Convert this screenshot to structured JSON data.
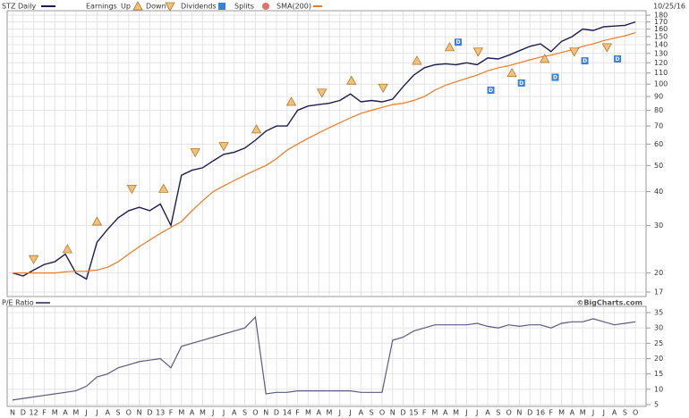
{
  "chart_data": [
    {
      "type": "line",
      "log": true,
      "grid": true,
      "date": "10/25/16",
      "series": [
        {
          "name": "STZ Daily",
          "color": "#1c1c50",
          "values": [
            20,
            19.5,
            20.5,
            21.5,
            22,
            23.5,
            20,
            19,
            26,
            29,
            32,
            34,
            35,
            34,
            36,
            30,
            46,
            48,
            49,
            52,
            55,
            56,
            58,
            62,
            67,
            70,
            70,
            80,
            83,
            84,
            85,
            87,
            92,
            86,
            87,
            86,
            88,
            98,
            108,
            115,
            118,
            119,
            118,
            120,
            118,
            125,
            124,
            128,
            133,
            138,
            141,
            132,
            144,
            150,
            160,
            158,
            163,
            164,
            165,
            170
          ]
        },
        {
          "name": "SMA(200)",
          "color": "#f07820",
          "values": [
            20,
            20,
            20,
            20,
            20,
            20.2,
            20.3,
            20.3,
            20.5,
            21,
            22,
            23.5,
            25,
            26.5,
            28,
            29.5,
            31,
            34,
            37,
            40,
            42,
            44,
            46,
            48,
            50,
            53,
            57,
            60,
            63,
            66,
            69,
            72,
            75,
            78,
            80,
            82,
            84,
            85,
            87,
            90,
            95,
            99,
            102,
            105,
            108,
            112,
            115,
            117,
            120,
            123,
            126,
            128,
            131,
            134,
            138,
            141,
            145,
            148,
            151,
            155
          ]
        }
      ],
      "earnings": {
        "name": "Earnings",
        "up": {
          "name": "Up",
          "color": "#f3c27a",
          "x": [
            5.2,
            8,
            14.3,
            23.1,
            26.4,
            32.1,
            38.3,
            41.4,
            47.3,
            50.4
          ],
          "values": [
            24.5,
            31,
            41,
            68,
            86,
            103,
            122,
            137,
            110,
            124
          ]
        },
        "down": {
          "name": "Down",
          "color": "#f3c27a",
          "x": [
            2,
            11.3,
            17.3,
            20,
            29.3,
            35.1,
            44.1,
            53.2,
            56.3
          ],
          "values": [
            22.5,
            41,
            56,
            59,
            93,
            97,
            132,
            132,
            137
          ]
        }
      },
      "dividends": {
        "name": "Dividends",
        "symbol": "D",
        "color": "#3a7fd8",
        "x": [
          42.2,
          45.3,
          48.2,
          51.4,
          54.2,
          57.3
        ],
        "values": [
          143,
          95,
          101,
          106,
          122,
          124
        ]
      },
      "splits": {
        "name": "Splits",
        "color": "#e07070"
      },
      "ylim": [
        17,
        180
      ],
      "yticks": [
        17,
        20,
        30,
        40,
        50,
        60,
        70,
        80,
        90,
        100,
        110,
        120,
        130,
        140,
        150,
        160,
        170,
        180
      ]
    },
    {
      "type": "line",
      "grid": true,
      "source": "©BigCharts.com",
      "categories": [
        "N",
        "D",
        "12",
        "F",
        "M",
        "A",
        "M",
        "J",
        "J",
        "A",
        "S",
        "O",
        "N",
        "D",
        "13",
        "F",
        "M",
        "A",
        "M",
        "J",
        "J",
        "A",
        "S",
        "O",
        "N",
        "D",
        "14",
        "F",
        "M",
        "A",
        "M",
        "J",
        "J",
        "A",
        "S",
        "O",
        "N",
        "D",
        "15",
        "F",
        "M",
        "A",
        "M",
        "J",
        "J",
        "A",
        "S",
        "O",
        "N",
        "D",
        "16",
        "F",
        "M",
        "A",
        "M",
        "J",
        "J",
        "A",
        "S",
        "O"
      ],
      "series": [
        {
          "name": "P/E Ratio",
          "color": "#5a5a80",
          "values": [
            6.5,
            7,
            7.5,
            8,
            8.5,
            9,
            9.5,
            11,
            14,
            15,
            17,
            18,
            19,
            19.5,
            20,
            17,
            24,
            25,
            26,
            27,
            28,
            29,
            30,
            33.5,
            8.5,
            9,
            9,
            9.5,
            9.5,
            9.5,
            9.5,
            9.5,
            9.5,
            9,
            9,
            9,
            26,
            27,
            29,
            30,
            31,
            31,
            31,
            31,
            31.5,
            30.5,
            30,
            31,
            30.5,
            31,
            31,
            30,
            31.5,
            32,
            32,
            33,
            32,
            31,
            31.5,
            32
          ]
        }
      ],
      "ylim": [
        5,
        35
      ],
      "yticks": [
        5,
        10,
        15,
        20,
        25,
        30,
        35
      ]
    }
  ]
}
